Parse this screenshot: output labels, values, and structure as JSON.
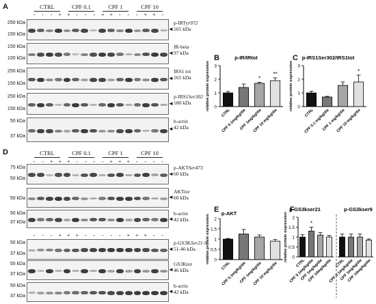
{
  "panel_a": {
    "letter": "A",
    "groups": [
      "CTRL",
      "CPF 0.1",
      "CPF 1",
      "CPF 10"
    ],
    "treat_marks": [
      "-",
      "-",
      "-",
      "+",
      "+"
    ],
    "blots": [
      {
        "ladder": [
          "250 kDa",
          "150 kDa"
        ],
        "label": "p-IRTyr972",
        "label_main": "p-IRTy",
        "label_italic": "r972",
        "kda": "165 kDa"
      },
      {
        "ladder": [
          "150 kDa",
          "100 kDa"
        ],
        "label_main": "IR-beta",
        "label_italic": "",
        "kda": "97 kDa"
      },
      {
        "ladder": [
          "250 kDa",
          "150 kDa"
        ],
        "label_main": "IRS1 tot",
        "label_italic": "",
        "kda": "165 kDa"
      },
      {
        "ladder": [
          "250 kDa",
          "150 kDa"
        ],
        "label_main": "p-IRS1",
        "label_italic": "Ser302",
        "kda": "180 kDa"
      },
      {
        "ladder": [
          "50 kDa",
          "37 kDa"
        ],
        "label_main": "b-actin",
        "label_italic": "",
        "kda": "42 kDa"
      }
    ]
  },
  "panel_d": {
    "letter": "D",
    "groups": [
      "CTRL",
      "CPF 0.1",
      "CPF 1",
      "CPF 10"
    ],
    "treat_marks_1": [
      "-",
      "-",
      "+",
      "+",
      "+",
      "-",
      "-"
    ],
    "treat_marks_2": [
      "-",
      "-",
      "-",
      "+",
      "+",
      "+",
      "-",
      "-"
    ],
    "blots": [
      {
        "ladder": [
          "75 kDa",
          "50 kDa"
        ],
        "label_main": "p-AKT",
        "label_italic": "Ser473",
        "kda": "60 kDa"
      },
      {
        "ladder": [
          "50 kDa"
        ],
        "label_main": "AKT",
        "label_italic": "tot",
        "kda": "60 kDa"
      },
      {
        "ladder": [
          "50 kDa",
          "37 kDa"
        ],
        "label_main": "b-actin",
        "label_italic": "",
        "kda": "42 kDa"
      },
      {
        "ladder": [
          "50 kDa",
          "37 kDa"
        ],
        "label_main": "p-GS3K",
        "label_italic": "Ser21-9",
        "kda": "51-46 kDa"
      },
      {
        "ladder": [
          "50 kDa",
          "37 kDa"
        ],
        "label_main": "GS3K",
        "label_italic": "tot",
        "kda": "46 kDa"
      },
      {
        "ladder": [
          "50 kDa",
          "37 kDa"
        ],
        "label_main": "b-actin",
        "label_italic": "",
        "kda": "42 kDa"
      }
    ]
  },
  "colors": {
    "ctrl": "#111111",
    "cpf01": "#777777",
    "cpf1": "#a6a6a6",
    "cpf10": "#e0e0e0"
  },
  "chart_data": [
    {
      "panel": "B",
      "type": "bar",
      "title": "p-IR/IRtot",
      "ylabel": "relative protein expression",
      "categories": [
        "CTRL",
        "CPF 0.1mg/kg/die",
        "CPF 1mg/kg/die",
        "CPF 10 mg/kg/die"
      ],
      "values": [
        1.0,
        1.4,
        1.7,
        1.9
      ],
      "errors": [
        0.1,
        0.25,
        0.08,
        0.2
      ],
      "significance": [
        "",
        "",
        "*",
        "**"
      ],
      "ylim": [
        0,
        3
      ],
      "yticks": [
        0,
        1,
        2,
        3
      ]
    },
    {
      "panel": "C",
      "type": "bar",
      "title": "p-IRS1Ser302/IRS1tot",
      "ylabel": "relative protein expression",
      "categories": [
        "CTRL",
        "CPF 0.1 mg/kg/die",
        "CPF 1 mg/kg/die",
        "CPF 10 mg/kg/die"
      ],
      "values": [
        1.0,
        0.7,
        1.55,
        1.8
      ],
      "errors": [
        0.12,
        0.05,
        0.25,
        0.5
      ],
      "significance": [
        "",
        "",
        "",
        "*"
      ],
      "ylim": [
        0,
        3
      ],
      "yticks": [
        0,
        1,
        2,
        3
      ]
    },
    {
      "panel": "E",
      "type": "bar",
      "title": "p-AKT",
      "ylabel": "relative protein expression",
      "categories": [
        "CTRL",
        "CPF 0.1mg/kg/die",
        "CPF 1mg/kg/die",
        "CPF 10 mg/kg/die"
      ],
      "values": [
        1.0,
        1.25,
        1.1,
        0.9
      ],
      "errors": [
        0.03,
        0.22,
        0.1,
        0.08
      ],
      "significance": [
        "",
        "",
        "",
        ""
      ],
      "ylim": [
        0,
        2
      ],
      "yticks": [
        0.0,
        0.5,
        1.0,
        1.5,
        2.0
      ]
    },
    {
      "panel": "F",
      "type": "bar",
      "title": "p-GS3kser21",
      "ylabel": "relative protein expression",
      "categories": [
        "CTRL",
        "CPF 0.1mg/kg/die",
        "CPF 1mg/kg/die",
        "CPF 10mg/kg/die"
      ],
      "values": [
        1.0,
        1.3,
        1.1,
        1.0
      ],
      "errors": [
        0.12,
        0.2,
        0.12,
        0.08
      ],
      "significance": [
        "",
        "*",
        "",
        ""
      ],
      "ylim": [
        0,
        2
      ],
      "yticks": [
        0.0,
        0.5,
        1.0,
        1.5,
        2.0
      ]
    },
    {
      "panel": "F2",
      "type": "bar",
      "title": "p-GS3kser9",
      "categories": [
        "CTRL",
        "CPF 0.1mg/kg/die",
        "CPF 1mg/kg/die",
        "CPF 10mg/kg/die"
      ],
      "values": [
        1.0,
        1.0,
        1.0,
        0.85
      ],
      "errors": [
        0.15,
        0.15,
        0.15,
        0.05
      ],
      "significance": [
        "",
        "",
        "",
        ""
      ],
      "ylim": [
        0,
        2
      ]
    }
  ]
}
